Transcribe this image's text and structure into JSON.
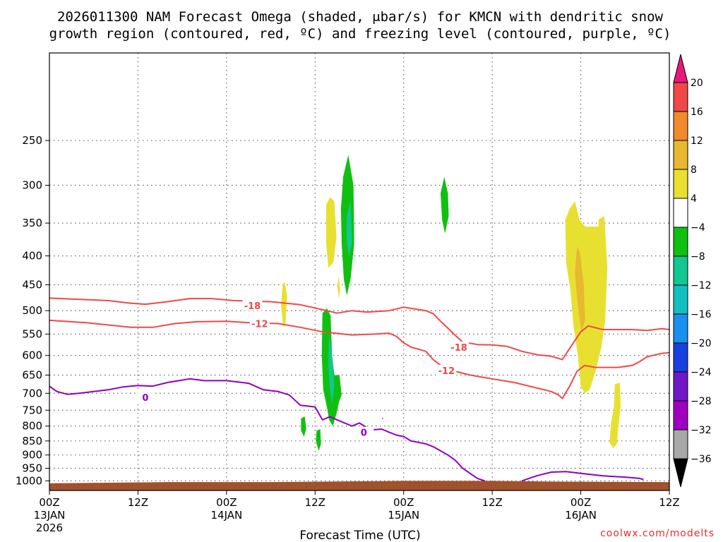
{
  "chart_data": {
    "type": "cross-section",
    "title_line1": "2026011300 NAM Forecast Omega (shaded, μbar/s) for KMCN with dendritic snow",
    "title_line2": "growth region (contoured, red, ºC) and freezing level (contoured, purple, ºC)",
    "xlabel": "Forecast Time (UTC)",
    "ylabel": "",
    "credit": "coolwx.com/modelts",
    "x_unit": "forecast hour",
    "x_range": [
      0,
      84
    ],
    "x_ticks": [
      {
        "x": 0,
        "l1": "00Z",
        "l2": "13JAN",
        "l3": "2026"
      },
      {
        "x": 12,
        "l1": "12Z",
        "l2": "",
        "l3": ""
      },
      {
        "x": 24,
        "l1": "00Z",
        "l2": "14JAN",
        "l3": ""
      },
      {
        "x": 36,
        "l1": "12Z",
        "l2": "",
        "l3": ""
      },
      {
        "x": 48,
        "l1": "00Z",
        "l2": "15JAN",
        "l3": ""
      },
      {
        "x": 60,
        "l1": "12Z",
        "l2": "",
        "l3": ""
      },
      {
        "x": 72,
        "l1": "00Z",
        "l2": "16JAN",
        "l3": ""
      },
      {
        "x": 84,
        "l1": "12Z",
        "l2": "",
        "l3": ""
      }
    ],
    "y_unit": "hPa",
    "y_range": [
      1000,
      175
    ],
    "y_ticks": [
      1000,
      950,
      900,
      850,
      800,
      750,
      700,
      650,
      600,
      550,
      500,
      450,
      400,
      350,
      300,
      250
    ],
    "colorbar": {
      "labels": [
        "20",
        "16",
        "12",
        "8",
        "4",
        "−4",
        "−8",
        "−12",
        "−16",
        "−20",
        "−24",
        "−28",
        "−32",
        "−36"
      ],
      "colors": [
        "#e8187a",
        "#f04848",
        "#f08a2a",
        "#e8b830",
        "#e8e030",
        "#ffffff",
        "#10c010",
        "#10c890",
        "#10c0c0",
        "#1890f0",
        "#1840e0",
        "#7018c8",
        "#a000c0",
        "#a8a8a8",
        "#000000"
      ]
    },
    "omega_patches": [
      {
        "color": "#e8e030",
        "pts": [
          [
            31.4,
            490
          ],
          [
            31.6,
            450
          ],
          [
            31.9,
            445
          ],
          [
            32.2,
            470
          ],
          [
            32.0,
            525
          ],
          [
            31.7,
            535
          ]
        ]
      },
      {
        "color": "#e8e030",
        "pts": [
          [
            37.5,
            325
          ],
          [
            38.0,
            315
          ],
          [
            38.6,
            320
          ],
          [
            38.9,
            370
          ],
          [
            38.5,
            410
          ],
          [
            37.8,
            420
          ],
          [
            37.5,
            380
          ]
        ]
      },
      {
        "color": "#e8e030",
        "pts": [
          [
            39.0,
            450
          ],
          [
            39.2,
            435
          ],
          [
            39.4,
            460
          ],
          [
            39.2,
            475
          ]
        ]
      },
      {
        "color": "#e8e030",
        "pts": [
          [
            69.9,
            345
          ],
          [
            70.5,
            330
          ],
          [
            71.2,
            320
          ],
          [
            71.8,
            345
          ],
          [
            72.6,
            355
          ],
          [
            74.4,
            355
          ],
          [
            74.4,
            345
          ],
          [
            75.2,
            340
          ],
          [
            75.6,
            420
          ],
          [
            75.3,
            520
          ],
          [
            74.8,
            580
          ],
          [
            74.0,
            640
          ],
          [
            73.2,
            690
          ],
          [
            72.5,
            700
          ],
          [
            72.0,
            680
          ],
          [
            71.6,
            600
          ],
          [
            71.0,
            530
          ],
          [
            70.6,
            460
          ],
          [
            70.0,
            410
          ]
        ]
      },
      {
        "color": "#e8b830",
        "pts": [
          [
            71.5,
            385
          ],
          [
            71.9,
            395
          ],
          [
            72.4,
            450
          ],
          [
            72.6,
            520
          ],
          [
            72.1,
            545
          ],
          [
            71.6,
            490
          ],
          [
            71.2,
            430
          ]
        ]
      },
      {
        "color": "#e8e030",
        "pts": [
          [
            76.6,
            675
          ],
          [
            77.3,
            670
          ],
          [
            77.4,
            740
          ],
          [
            77.1,
            800
          ],
          [
            76.9,
            860
          ],
          [
            76.4,
            875
          ],
          [
            75.9,
            855
          ],
          [
            76.1,
            790
          ],
          [
            76.5,
            740
          ]
        ]
      },
      {
        "color": "#10c010",
        "pts": [
          [
            39.8,
            290
          ],
          [
            40.5,
            265
          ],
          [
            41.2,
            300
          ],
          [
            41.3,
            380
          ],
          [
            40.8,
            440
          ],
          [
            40.3,
            470
          ],
          [
            39.9,
            440
          ],
          [
            39.6,
            380
          ],
          [
            39.5,
            330
          ]
        ]
      },
      {
        "color": "#10c890",
        "pts": [
          [
            40.3,
            340
          ],
          [
            40.8,
            320
          ],
          [
            41.0,
            380
          ],
          [
            40.6,
            400
          ],
          [
            40.3,
            380
          ]
        ]
      },
      {
        "color": "#10c010",
        "pts": [
          [
            53.0,
            310
          ],
          [
            53.5,
            290
          ],
          [
            54.0,
            310
          ],
          [
            54.1,
            340
          ],
          [
            53.6,
            365
          ],
          [
            53.2,
            345
          ]
        ]
      },
      {
        "color": "#10c010",
        "pts": [
          [
            37.0,
            505
          ],
          [
            37.6,
            495
          ],
          [
            38.1,
            510
          ],
          [
            38.3,
            600
          ],
          [
            38.6,
            650
          ],
          [
            39.3,
            650
          ],
          [
            39.6,
            705
          ],
          [
            39.3,
            720
          ],
          [
            38.9,
            760
          ],
          [
            38.4,
            800
          ],
          [
            37.9,
            780
          ],
          [
            37.6,
            740
          ],
          [
            37.1,
            690
          ],
          [
            36.9,
            600
          ]
        ]
      },
      {
        "color": "#10c890",
        "pts": [
          [
            37.9,
            550
          ],
          [
            38.3,
            600
          ],
          [
            38.6,
            680
          ],
          [
            38.3,
            730
          ],
          [
            38.0,
            690
          ],
          [
            37.8,
            620
          ]
        ]
      },
      {
        "color": "#10c010",
        "pts": [
          [
            34.1,
            775
          ],
          [
            34.6,
            770
          ],
          [
            34.8,
            810
          ],
          [
            34.5,
            835
          ],
          [
            34.1,
            815
          ]
        ]
      },
      {
        "color": "#10c010",
        "pts": [
          [
            36.2,
            815
          ],
          [
            36.7,
            810
          ],
          [
            36.8,
            860
          ],
          [
            36.5,
            885
          ],
          [
            36.1,
            850
          ]
        ]
      }
    ],
    "contours": [
      {
        "label": "-18",
        "color": "#f04848",
        "label_at": [
          27.5,
          490
        ],
        "pts": [
          [
            0,
            475
          ],
          [
            5,
            478
          ],
          [
            8,
            480
          ],
          [
            11,
            485
          ],
          [
            13,
            487
          ],
          [
            16,
            482
          ],
          [
            19,
            476
          ],
          [
            22,
            476
          ],
          [
            25,
            480
          ],
          [
            30,
            482
          ],
          [
            34,
            488
          ],
          [
            37,
            498
          ],
          [
            39,
            505
          ],
          [
            41,
            500
          ],
          [
            43,
            503
          ],
          [
            46,
            500
          ],
          [
            48,
            493
          ],
          [
            51,
            500
          ],
          [
            52,
            506
          ],
          [
            53,
            522
          ],
          [
            54,
            537
          ],
          [
            55,
            553
          ],
          [
            56,
            568
          ],
          [
            58,
            574
          ],
          [
            60,
            575
          ],
          [
            62,
            578
          ],
          [
            64,
            590
          ],
          [
            66,
            598
          ],
          [
            68,
            602
          ],
          [
            69.5,
            610
          ],
          [
            71,
            570
          ],
          [
            72,
            545
          ],
          [
            73,
            532
          ],
          [
            75,
            540
          ],
          [
            77,
            540
          ],
          [
            79,
            540
          ],
          [
            81,
            542
          ],
          [
            83,
            538
          ],
          [
            84,
            540
          ]
        ]
      },
      {
        "label": "-12",
        "color": "#f04848",
        "label_at": [
          28.5,
          527
        ],
        "pts": [
          [
            0,
            520
          ],
          [
            5,
            525
          ],
          [
            8,
            530
          ],
          [
            11,
            535
          ],
          [
            14,
            535
          ],
          [
            17,
            527
          ],
          [
            20,
            523
          ],
          [
            24,
            522
          ],
          [
            27,
            525
          ],
          [
            31,
            527
          ],
          [
            34,
            535
          ],
          [
            37,
            545
          ],
          [
            41,
            552
          ],
          [
            44,
            550
          ],
          [
            46,
            548
          ],
          [
            47,
            555
          ],
          [
            48,
            570
          ],
          [
            49,
            580
          ],
          [
            50,
            585
          ],
          [
            51,
            590
          ],
          [
            52,
            610
          ],
          [
            53,
            625
          ],
          [
            55,
            640
          ],
          [
            57,
            650
          ],
          [
            60,
            660
          ],
          [
            63,
            670
          ],
          [
            66,
            685
          ],
          [
            68,
            695
          ],
          [
            69,
            705
          ],
          [
            69.5,
            715
          ],
          [
            70.5,
            680
          ],
          [
            71.5,
            640
          ],
          [
            72.5,
            625
          ],
          [
            74,
            630
          ],
          [
            77,
            630
          ],
          [
            79,
            625
          ],
          [
            80,
            615
          ],
          [
            81,
            603
          ],
          [
            83,
            595
          ],
          [
            84,
            593
          ]
        ]
      },
      {
        "label": "-12",
        "color": "#f04848",
        "label_at": [
          53.8,
          638
        ],
        "pts": []
      },
      {
        "label": "-18",
        "color": "#f04848",
        "label_at": [
          55.5,
          580
        ],
        "pts": []
      },
      {
        "label": "0",
        "color": "#9000c0",
        "label_at": [
          13.0,
          712
        ],
        "pts": [
          [
            0,
            680
          ],
          [
            1,
            695
          ],
          [
            2.5,
            703
          ],
          [
            4,
            700
          ],
          [
            6,
            695
          ],
          [
            8,
            690
          ],
          [
            10,
            682
          ],
          [
            12,
            678
          ],
          [
            14,
            680
          ],
          [
            16,
            670
          ],
          [
            19,
            660
          ],
          [
            21,
            665
          ],
          [
            24,
            665
          ],
          [
            27,
            672
          ],
          [
            29,
            690
          ],
          [
            31,
            695
          ],
          [
            32.5,
            705
          ],
          [
            34,
            735
          ],
          [
            36,
            740
          ],
          [
            37,
            780
          ],
          [
            38,
            770
          ],
          [
            39,
            780
          ],
          [
            40,
            790
          ],
          [
            41,
            800
          ],
          [
            42,
            790
          ],
          [
            43,
            805
          ],
          [
            44,
            812
          ],
          [
            45,
            810
          ],
          [
            46,
            820
          ],
          [
            47,
            830
          ],
          [
            48,
            835
          ],
          [
            49,
            850
          ],
          [
            51,
            860
          ],
          [
            52,
            870
          ],
          [
            54,
            900
          ],
          [
            55,
            920
          ],
          [
            56,
            950
          ],
          [
            57,
            970
          ],
          [
            58,
            990
          ],
          [
            59,
            1000
          ]
        ]
      },
      {
        "label": "0",
        "color": "#9000c0",
        "label_at": [
          42.6,
          821
        ],
        "pts": []
      },
      {
        "label": "",
        "color": "#9000c0",
        "label_at": null,
        "pts": [
          [
            64,
            1000
          ],
          [
            66,
            980
          ],
          [
            68,
            965
          ],
          [
            70,
            963
          ],
          [
            72,
            970
          ],
          [
            75,
            980
          ],
          [
            78,
            985
          ],
          [
            80,
            990
          ],
          [
            80.5,
            995
          ]
        ]
      },
      {
        "label": "",
        "color": "#9000c0",
        "label_at": null,
        "pts": [
          [
            45.1,
            775
          ],
          [
            45.2,
            776
          ]
        ]
      }
    ],
    "ground_terrain": [
      [
        0,
        1010
      ],
      [
        16,
        1005
      ],
      [
        30,
        1005
      ],
      [
        38,
        1003
      ],
      [
        48,
        1000
      ],
      [
        55,
        1000
      ],
      [
        60,
        1000
      ],
      [
        68,
        1003
      ],
      [
        84,
        1005
      ]
    ]
  }
}
